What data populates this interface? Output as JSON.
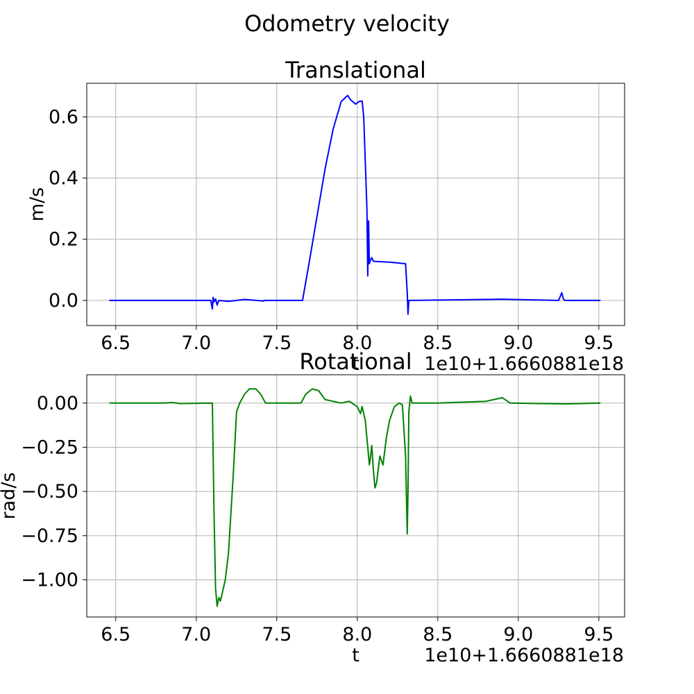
{
  "figure": {
    "suptitle": "Odometry velocity"
  },
  "chart_data": [
    {
      "type": "line",
      "title": "Translational",
      "xlabel": "t",
      "ylabel": "m/s",
      "x_offset_label": "1e10+1.6660881e18",
      "xlim": [
        6.32,
        9.66
      ],
      "ylim": [
        -0.082,
        0.71
      ],
      "xticks": [
        6.5,
        7.0,
        7.5,
        8.0,
        8.5,
        9.0,
        9.5
      ],
      "xtick_labels": [
        "6.5",
        "7.0",
        "7.5",
        "8.0",
        "8.5",
        "9.0",
        "9.5"
      ],
      "yticks": [
        0.0,
        0.2,
        0.4,
        0.6
      ],
      "ytick_labels": [
        "0.0",
        "0.2",
        "0.4",
        "0.6"
      ],
      "grid": true,
      "series": [
        {
          "color": "#0000ff",
          "x": [
            6.46,
            7.09,
            7.1,
            7.105,
            7.11,
            7.12,
            7.13,
            7.14,
            7.2,
            7.3,
            7.42,
            7.42,
            7.66,
            7.7,
            7.8,
            7.85,
            7.9,
            7.94,
            7.96,
            7.99,
            8.01,
            8.03,
            8.04,
            8.05,
            8.06,
            8.065,
            8.07,
            8.075,
            8.08,
            8.09,
            8.1,
            8.2,
            8.3,
            8.31,
            8.315,
            8.32,
            8.33,
            8.5,
            8.9,
            9.25,
            9.27,
            9.28,
            9.29,
            9.51
          ],
          "y": [
            0.0,
            0.0,
            -0.028,
            0.01,
            -0.005,
            0.005,
            -0.015,
            0.0,
            -0.003,
            0.003,
            -0.002,
            0.0,
            0.0,
            0.12,
            0.43,
            0.56,
            0.65,
            0.67,
            0.655,
            0.642,
            0.65,
            0.652,
            0.6,
            0.45,
            0.3,
            0.08,
            0.26,
            0.12,
            0.13,
            0.14,
            0.128,
            0.125,
            0.12,
            0.025,
            -0.045,
            0.0,
            0.0,
            0.001,
            0.004,
            0.0,
            0.025,
            0.004,
            0.0,
            0.0
          ]
        }
      ]
    },
    {
      "type": "line",
      "title": "Rotational",
      "xlabel": "t",
      "ylabel": "rad/s",
      "x_offset_label": "1e10+1.6660881e18",
      "xlim": [
        6.32,
        9.66
      ],
      "ylim": [
        -1.21,
        0.16
      ],
      "xticks": [
        6.5,
        7.0,
        7.5,
        8.0,
        8.5,
        9.0,
        9.5
      ],
      "xtick_labels": [
        "6.5",
        "7.0",
        "7.5",
        "8.0",
        "8.5",
        "9.0",
        "9.5"
      ],
      "yticks": [
        0.0,
        -0.25,
        -0.5,
        -0.75,
        -1.0
      ],
      "ytick_labels": [
        "0.00",
        "−0.25",
        "−0.50",
        "−0.75",
        "−1.00"
      ],
      "grid": true,
      "series": [
        {
          "color": "#008000",
          "x": [
            6.46,
            6.8,
            6.85,
            6.9,
            7.1,
            7.11,
            7.12,
            7.13,
            7.14,
            7.15,
            7.18,
            7.2,
            7.23,
            7.25,
            7.27,
            7.3,
            7.33,
            7.37,
            7.4,
            7.43,
            7.48,
            7.55,
            7.65,
            7.68,
            7.72,
            7.76,
            7.8,
            7.9,
            7.95,
            8.0,
            8.02,
            8.03,
            8.05,
            8.07,
            8.075,
            8.08,
            8.09,
            8.1,
            8.11,
            8.12,
            8.14,
            8.16,
            8.18,
            8.2,
            8.23,
            8.26,
            8.28,
            8.3,
            8.31,
            8.315,
            8.32,
            8.33,
            8.34,
            8.5,
            8.8,
            8.9,
            8.95,
            9.3,
            9.51
          ],
          "y": [
            0.0,
            0.0,
            0.003,
            -0.003,
            0.0,
            -0.6,
            -1.05,
            -1.15,
            -1.1,
            -1.12,
            -1.0,
            -0.85,
            -0.4,
            -0.05,
            0.0,
            0.05,
            0.08,
            0.08,
            0.05,
            0.0,
            0.0,
            0.0,
            0.0,
            0.05,
            0.08,
            0.07,
            0.02,
            0.0,
            0.01,
            -0.02,
            -0.06,
            -0.02,
            -0.1,
            -0.3,
            -0.35,
            -0.32,
            -0.24,
            -0.38,
            -0.48,
            -0.45,
            -0.3,
            -0.35,
            -0.2,
            -0.1,
            -0.02,
            0.0,
            -0.01,
            -0.3,
            -0.74,
            -0.5,
            -0.05,
            0.04,
            0.0,
            0.0,
            0.01,
            0.03,
            0.0,
            -0.005,
            0.0
          ]
        }
      ]
    }
  ]
}
